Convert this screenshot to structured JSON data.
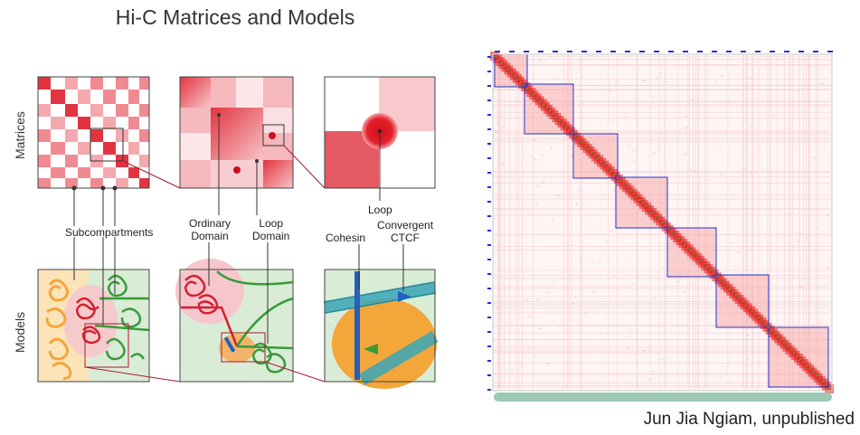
{
  "title": "Hi-C Matrices and Models",
  "row_labels": {
    "matrices": "Matrices",
    "models": "Models"
  },
  "labels": {
    "subcompartments": "Subcompartments",
    "ordinary_domain": [
      "Ordinary",
      "Domain"
    ],
    "loop_domain": [
      "Loop",
      "Domain"
    ],
    "loop": "Loop",
    "cohesin": "Cohesin",
    "convergent_ctcf": [
      "Convergent",
      "CTCF"
    ]
  },
  "credit": "Jun Jia Ngiam, unpublished",
  "colors": {
    "matrix_red": "#e23440",
    "matrix_pink": "#f6c2c6",
    "model_green": "#d9ecd6",
    "chromatin_red": "#d42030",
    "chromatin_green": "#3a9a3a",
    "chromatin_orange": "#f3a63a",
    "heatmap_red": "#e41a1c",
    "tad_blue": "#2233cc"
  },
  "icons": [
    "loop-dot-icon",
    "cohesin-ring-icon",
    "ctcf-arrow-icon"
  ]
}
